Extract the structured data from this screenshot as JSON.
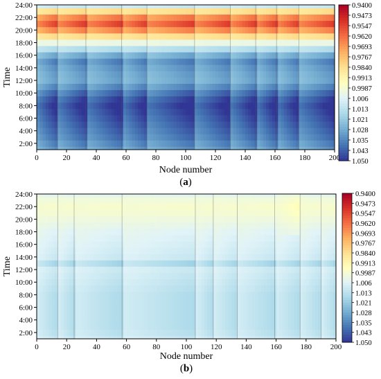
{
  "chart_data": [
    {
      "type": "heatmap",
      "panel_label": "a",
      "xlabel": "Node number",
      "ylabel": "Time",
      "xlim": [
        0,
        200
      ],
      "ylim": [
        1,
        24
      ],
      "x_ticks": [
        0,
        20,
        40,
        60,
        80,
        100,
        120,
        140,
        160,
        180,
        200
      ],
      "y_ticks": [
        "2:00",
        "4:00",
        "6:00",
        "8:00",
        "10:00",
        "12:00",
        "14:00",
        "16:00",
        "18:00",
        "20:00",
        "22:00",
        "24:00"
      ],
      "colorbar_ticks": [
        "0.9400",
        "0.9473",
        "0.9547",
        "0.9620",
        "0.9693",
        "0.9767",
        "0.9840",
        "0.9913",
        "0.9987",
        "1.006",
        "1.013",
        "1.021",
        "1.028",
        "1.035",
        "1.043",
        "1.050"
      ],
      "colorbar_range": [
        0.94,
        1.05
      ],
      "feeder_boundaries": [
        14,
        33,
        57,
        74,
        106,
        130,
        147,
        161,
        176
      ],
      "hourly_profile": [
        {
          "hour": 1,
          "value": 1.03
        },
        {
          "hour": 2,
          "value": 1.033
        },
        {
          "hour": 3,
          "value": 1.036
        },
        {
          "hour": 4,
          "value": 1.038
        },
        {
          "hour": 5,
          "value": 1.04
        },
        {
          "hour": 6,
          "value": 1.042
        },
        {
          "hour": 7,
          "value": 1.044
        },
        {
          "hour": 8,
          "value": 1.046
        },
        {
          "hour": 9,
          "value": 1.043
        },
        {
          "hour": 10,
          "value": 1.038
        },
        {
          "hour": 11,
          "value": 1.032
        },
        {
          "hour": 12,
          "value": 1.027
        },
        {
          "hour": 13,
          "value": 1.028
        },
        {
          "hour": 14,
          "value": 1.03
        },
        {
          "hour": 15,
          "value": 1.033
        },
        {
          "hour": 16,
          "value": 1.026
        },
        {
          "hour": 17,
          "value": 1.014
        },
        {
          "hour": 18,
          "value": 1.002
        },
        {
          "hour": 19,
          "value": 0.985
        },
        {
          "hour": 20,
          "value": 0.97
        },
        {
          "hour": 21,
          "value": 0.96
        },
        {
          "hour": 22,
          "value": 0.968
        },
        {
          "hour": 23,
          "value": 0.985
        },
        {
          "hour": 24,
          "value": 1.01
        }
      ],
      "notes": "Node voltage per unit; low voltage (red) at 20:00-22:00, high voltage (blue) around 6:00-10:00 and 14:00-16:00"
    },
    {
      "type": "heatmap",
      "panel_label": "b",
      "xlabel": "Node number",
      "ylabel": "Time",
      "xlim": [
        0,
        200
      ],
      "ylim": [
        1,
        24
      ],
      "x_ticks": [
        0,
        20,
        40,
        60,
        80,
        100,
        120,
        140,
        160,
        180,
        200
      ],
      "y_ticks": [
        "2:00",
        "4:00",
        "6:00",
        "8:00",
        "10:00",
        "12:00",
        "14:00",
        "16:00",
        "18:00",
        "20:00",
        "22:00",
        "24:00"
      ],
      "colorbar_ticks": [
        "0.9400",
        "0.9473",
        "0.9547",
        "0.9620",
        "0.9693",
        "0.9767",
        "0.9840",
        "0.9913",
        "0.9987",
        "1.006",
        "1.013",
        "1.021",
        "1.028",
        "1.035",
        "1.043",
        "1.050"
      ],
      "colorbar_range": [
        0.94,
        1.05
      ],
      "feeder_boundaries": [
        14,
        25,
        57,
        106,
        118,
        134,
        159,
        176,
        190
      ],
      "hourly_profile": [
        {
          "hour": 1,
          "value": 1.01
        },
        {
          "hour": 2,
          "value": 1.012
        },
        {
          "hour": 3,
          "value": 1.013
        },
        {
          "hour": 4,
          "value": 1.013
        },
        {
          "hour": 5,
          "value": 1.013
        },
        {
          "hour": 6,
          "value": 1.013
        },
        {
          "hour": 7,
          "value": 1.013
        },
        {
          "hour": 8,
          "value": 1.013
        },
        {
          "hour": 9,
          "value": 1.012
        },
        {
          "hour": 10,
          "value": 1.011
        },
        {
          "hour": 11,
          "value": 1.01
        },
        {
          "hour": 12,
          "value": 1.009
        },
        {
          "hour": 13,
          "value": 1.015
        },
        {
          "hour": 14,
          "value": 1.009
        },
        {
          "hour": 15,
          "value": 1.008
        },
        {
          "hour": 16,
          "value": 1.007
        },
        {
          "hour": 17,
          "value": 1.006
        },
        {
          "hour": 18,
          "value": 1.005
        },
        {
          "hour": 19,
          "value": 1.003
        },
        {
          "hour": 20,
          "value": 1.001
        },
        {
          "hour": 21,
          "value": 0.999
        },
        {
          "hour": 22,
          "value": 0.998
        },
        {
          "hour": 23,
          "value": 1.0
        },
        {
          "hour": 24,
          "value": 1.004
        }
      ],
      "notes": "Node voltage per unit after regulation; values mostly 0.998-1.015, light blue with slight yellow near 160-180 at evening"
    }
  ],
  "colormap": [
    "#313695",
    "#4575b4",
    "#74add1",
    "#abd9e9",
    "#e0f3f8",
    "#ffffbf",
    "#fee090",
    "#fdae61",
    "#f46d43",
    "#d73027",
    "#a50026"
  ]
}
